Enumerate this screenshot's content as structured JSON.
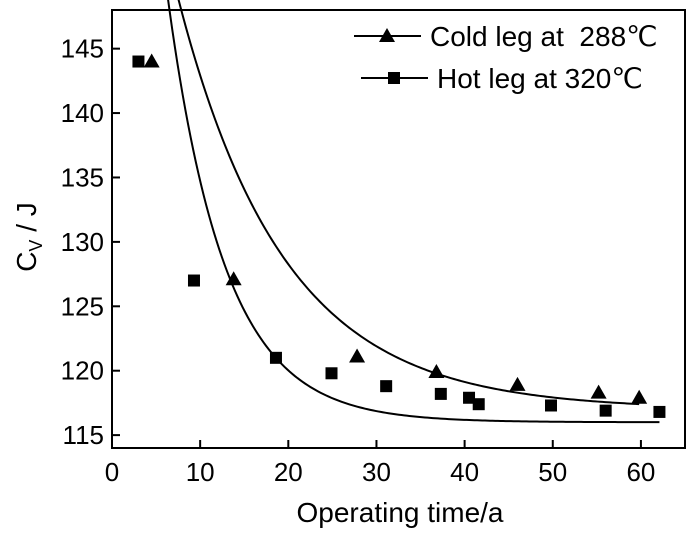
{
  "chart_data": {
    "type": "scatter",
    "title": "",
    "xlabel": "Operating time/a",
    "ylabel_main": "C",
    "ylabel_sub": "V",
    "ylabel_unit": " / J",
    "xlim": [
      0,
      65
    ],
    "ylim": [
      114,
      148
    ],
    "xticks": [
      0,
      10,
      20,
      30,
      40,
      50,
      60
    ],
    "yticks": [
      115,
      120,
      125,
      130,
      135,
      140,
      145
    ],
    "legend_position": "top-right",
    "series": [
      {
        "name": "Cold leg at  288℃",
        "marker": "triangle",
        "color": "#000000",
        "x": [
          4.5,
          13.8,
          27.8,
          36.8,
          46.0,
          55.2,
          59.8
        ],
        "y": [
          144.0,
          127.1,
          121.1,
          119.9,
          118.9,
          118.3,
          117.9
        ],
        "fit_curve": {
          "a": 117.0,
          "b": 41.0,
          "c": 12.0
        }
      },
      {
        "name": "Hot leg at 320℃",
        "marker": "square",
        "color": "#000000",
        "x": [
          3.0,
          9.3,
          18.6,
          24.9,
          31.1,
          37.3,
          40.5,
          41.6,
          49.8,
          56.0,
          62.1
        ],
        "y": [
          144.0,
          127.0,
          121.0,
          119.8,
          118.8,
          118.2,
          117.9,
          117.4,
          117.3,
          116.9,
          116.8
        ],
        "fit_curve": {
          "a": 116.0,
          "b": 55.0,
          "c": 6.5
        }
      }
    ]
  }
}
